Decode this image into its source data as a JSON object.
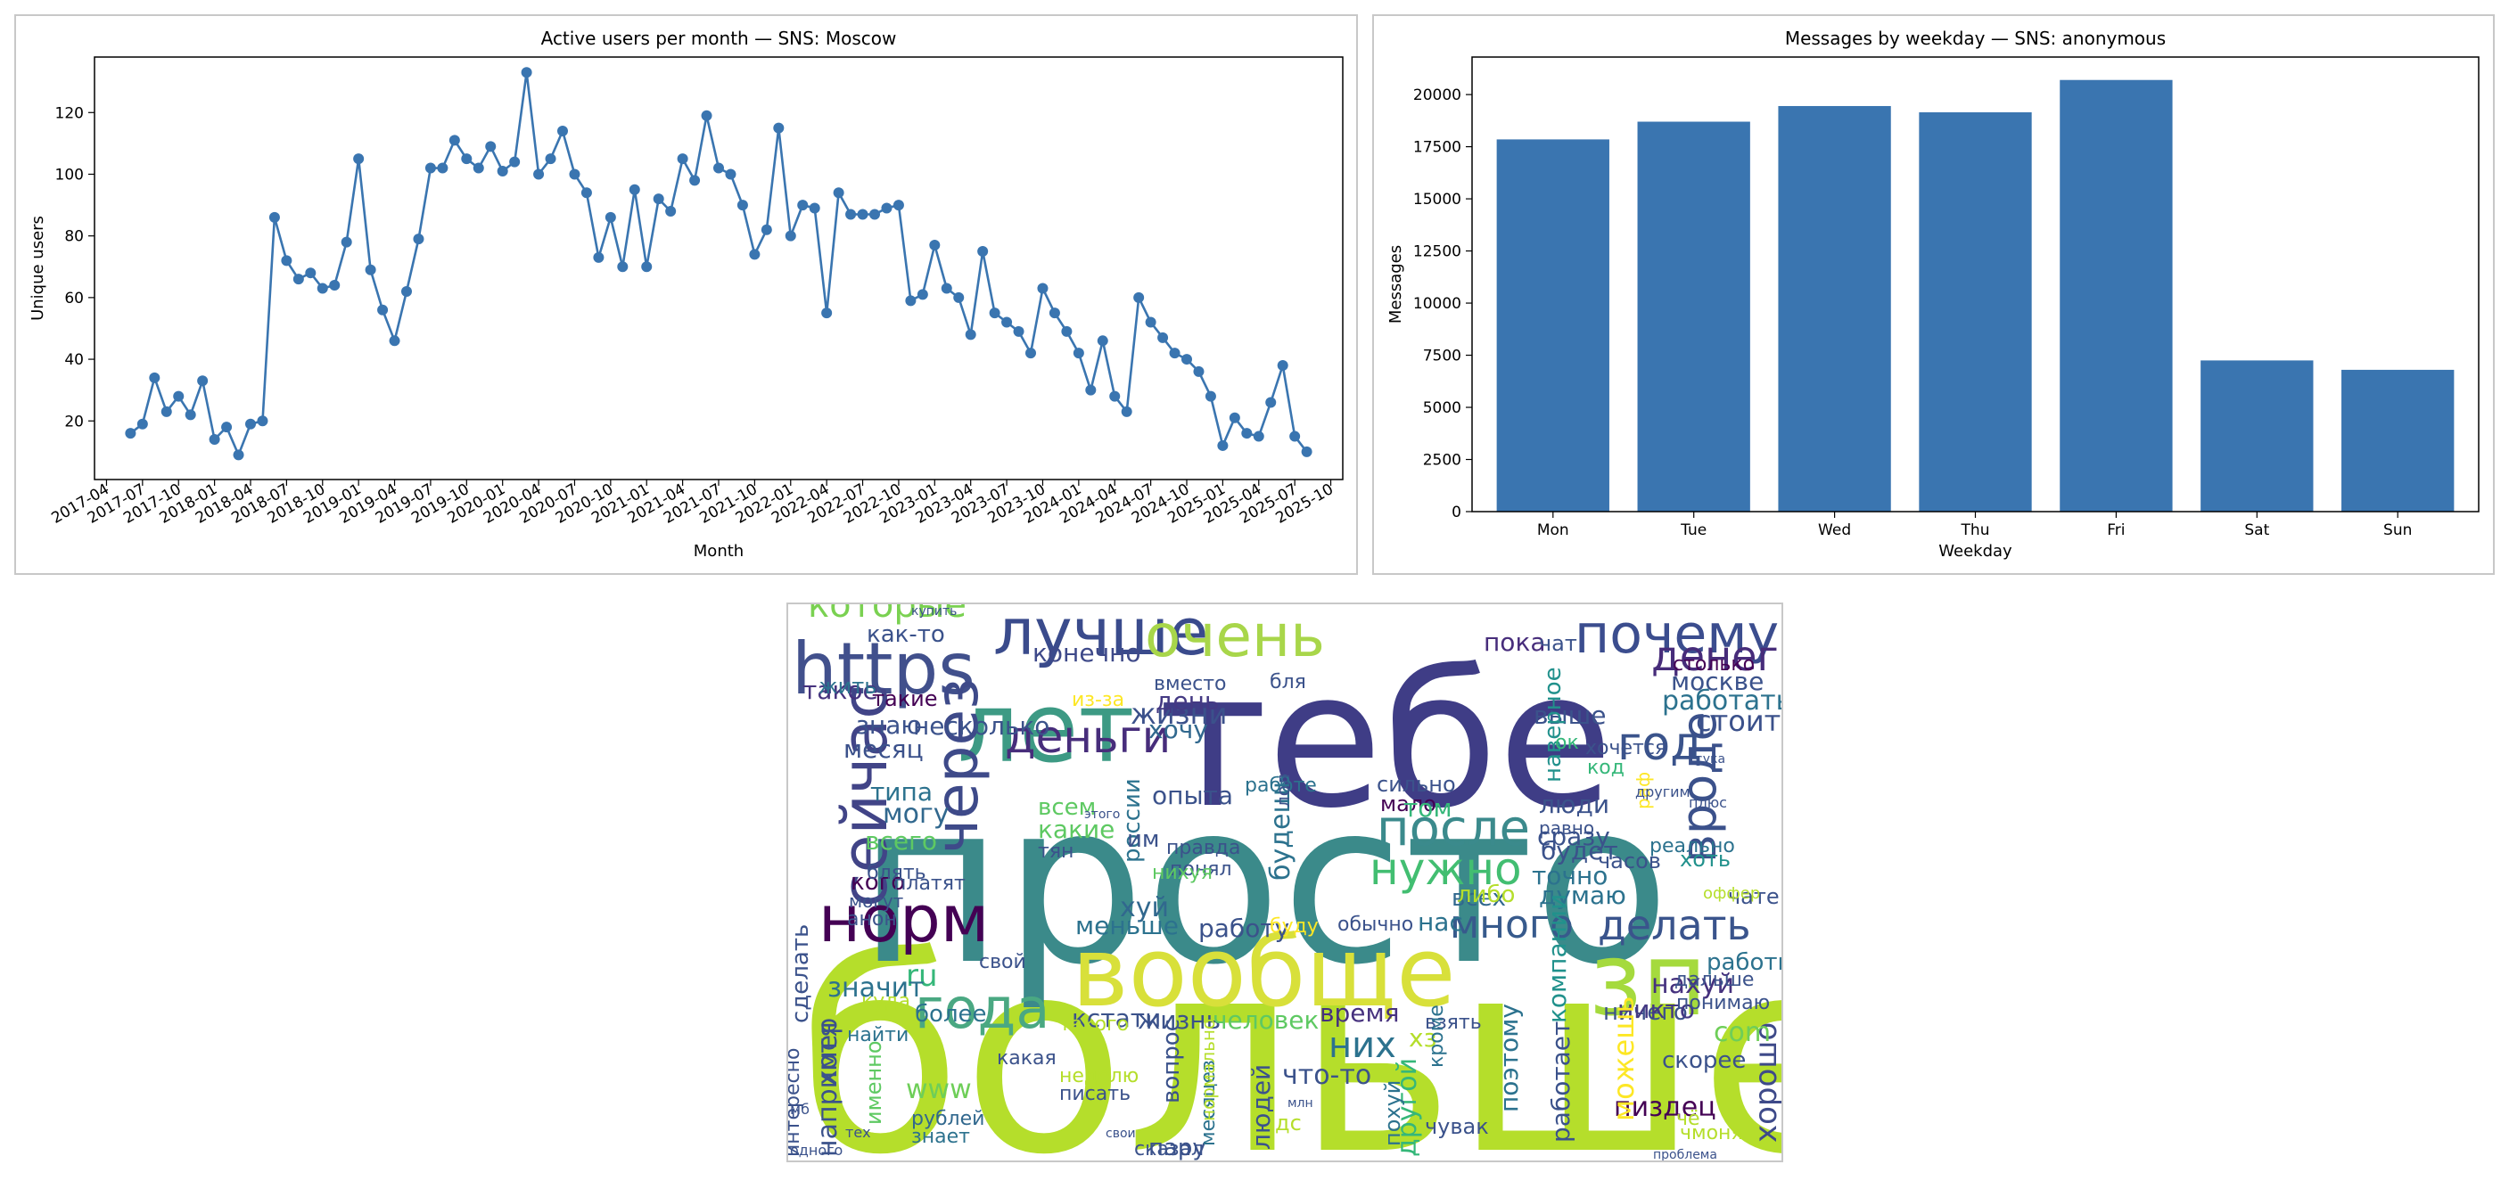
{
  "charts": [
    {
      "type": "line",
      "title": "Active users per month — SNS: Moscow",
      "xlabel": "Month",
      "ylabel": "Unique users",
      "color": "#3a75b0",
      "ylim": [
        1,
        138
      ],
      "yticks": [
        20,
        40,
        60,
        80,
        100,
        120
      ],
      "xtick_labels": [
        "2017-04",
        "2017-07",
        "2017-10",
        "2018-01",
        "2018-04",
        "2018-07",
        "2018-10",
        "2019-01",
        "2019-04",
        "2019-07",
        "2019-10",
        "2020-01",
        "2020-04",
        "2020-07",
        "2020-10",
        "2021-01",
        "2021-04",
        "2021-07",
        "2021-10",
        "2022-01",
        "2022-04",
        "2022-07",
        "2022-10",
        "2023-01",
        "2023-04",
        "2023-07",
        "2023-10",
        "2024-01",
        "2024-04",
        "2024-07",
        "2024-10",
        "2025-01",
        "2025-04",
        "2025-07",
        "2025-10"
      ],
      "x": [
        "2017-06",
        "2017-07",
        "2017-08",
        "2017-09",
        "2017-10",
        "2017-11",
        "2017-12",
        "2018-01",
        "2018-02",
        "2018-03",
        "2018-04",
        "2018-05",
        "2018-06",
        "2018-07",
        "2018-08",
        "2018-09",
        "2018-10",
        "2018-11",
        "2018-12",
        "2019-01",
        "2019-02",
        "2019-03",
        "2019-04",
        "2019-05",
        "2019-06",
        "2019-07",
        "2019-08",
        "2019-09",
        "2019-10",
        "2019-11",
        "2019-12",
        "2020-01",
        "2020-02",
        "2020-03",
        "2020-04",
        "2020-05",
        "2020-06",
        "2020-07",
        "2020-08",
        "2020-09",
        "2020-10",
        "2020-11",
        "2020-12",
        "2021-01",
        "2021-02",
        "2021-03",
        "2021-04",
        "2021-05",
        "2021-06",
        "2021-07",
        "2021-08",
        "2021-09",
        "2021-10",
        "2021-11",
        "2021-12",
        "2022-01",
        "2022-02",
        "2022-03",
        "2022-04",
        "2022-05",
        "2022-06",
        "2022-07",
        "2022-08",
        "2022-09",
        "2022-10",
        "2022-11",
        "2022-12",
        "2023-01",
        "2023-02",
        "2023-03",
        "2023-04",
        "2023-05",
        "2023-06",
        "2023-07",
        "2023-08",
        "2023-09",
        "2023-10",
        "2023-11",
        "2023-12",
        "2024-01",
        "2024-02",
        "2024-03",
        "2024-04",
        "2024-05",
        "2024-06",
        "2024-07",
        "2024-08",
        "2024-09",
        "2024-10",
        "2024-11",
        "2024-12",
        "2025-01",
        "2025-02",
        "2025-03",
        "2025-04",
        "2025-05",
        "2025-06",
        "2025-07",
        "2025-08"
      ],
      "y": [
        16,
        19,
        34,
        23,
        28,
        22,
        33,
        14,
        18,
        9,
        19,
        20,
        86,
        72,
        66,
        68,
        63,
        64,
        78,
        105,
        69,
        56,
        46,
        62,
        79,
        102,
        102,
        111,
        105,
        102,
        109,
        101,
        104,
        133,
        100,
        105,
        114,
        100,
        94,
        73,
        86,
        70,
        95,
        70,
        92,
        88,
        105,
        98,
        119,
        102,
        100,
        90,
        74,
        82,
        115,
        80,
        90,
        89,
        55,
        94,
        87,
        87,
        87,
        89,
        90,
        59,
        61,
        77,
        63,
        60,
        48,
        75,
        55,
        52,
        49,
        42,
        63,
        55,
        49,
        42,
        30,
        46,
        28,
        23,
        60,
        52,
        47,
        42,
        40,
        36,
        28,
        12,
        21,
        16,
        15,
        26,
        38,
        15,
        10
      ]
    },
    {
      "type": "bar",
      "title": "Messages by weekday — SNS: anonymous",
      "xlabel": "Weekday",
      "ylabel": "Messages",
      "color": "#3a75b0",
      "ylim": [
        0,
        21800
      ],
      "yticks": [
        0,
        2500,
        5000,
        7500,
        10000,
        12500,
        15000,
        17500,
        20000
      ],
      "categories": [
        "Mon",
        "Tue",
        "Wed",
        "Thu",
        "Fri",
        "Sat",
        "Sun"
      ],
      "values": [
        17850,
        18700,
        19450,
        19150,
        20700,
        7250,
        6800
      ]
    }
  ],
  "wordcloud": {
    "words": [
      {
        "text": "больше",
        "color": "#b5de2b"
      },
      {
        "text": "просто",
        "color": "#3b8a8a"
      },
      {
        "text": "тебе",
        "color": "#3f3d86"
      },
      {
        "text": "лет",
        "color": "#3d9a84"
      },
      {
        "text": "вообще",
        "color": "#d8e03a"
      },
      {
        "text": "лучше",
        "color": "#3a4b8c"
      },
      {
        "text": "очень",
        "color": "#a8d64a"
      },
      {
        "text": "почему",
        "color": "#3b4d8e"
      },
      {
        "text": "https",
        "color": "#41508c"
      },
      {
        "text": "зп",
        "color": "#a5da3d"
      },
      {
        "text": "норм",
        "color": "#440154"
      },
      {
        "text": "сейчас",
        "color": "#414487"
      },
      {
        "text": "через",
        "color": "#3e4a89"
      },
      {
        "text": "года",
        "color": "#4aa882"
      },
      {
        "text": "деньги",
        "color": "#472d7b"
      },
      {
        "text": "год",
        "color": "#3a538b"
      },
      {
        "text": "денег",
        "color": "#472c7a"
      },
      {
        "text": "делать",
        "color": "#3a548c"
      },
      {
        "text": "много",
        "color": "#375a8c"
      },
      {
        "text": "после",
        "color": "#3b8a8c"
      },
      {
        "text": "нужно",
        "color": "#42be71"
      },
      {
        "text": "которые",
        "color": "#7ad151"
      },
      {
        "text": "вроде",
        "color": "#3b518b"
      },
      {
        "text": "работать",
        "color": "#2c728e"
      },
      {
        "text": "стоит",
        "color": "#3b518b"
      },
      {
        "text": "пиздец",
        "color": "#440154"
      },
      {
        "text": "нахуй",
        "color": "#46327e"
      },
      {
        "text": "время",
        "color": "#46317e"
      },
      {
        "text": "ничего",
        "color": "#3b518b"
      },
      {
        "text": "жизни",
        "color": "#3b518b"
      },
      {
        "text": "конечно",
        "color": "#3e4989"
      },
      {
        "text": "меньше",
        "color": "#2c728e"
      },
      {
        "text": "работу",
        "color": "#3b528b"
      },
      {
        "text": "хорошо",
        "color": "#3e4a89"
      },
      {
        "text": "никто",
        "color": "#443983"
      },
      {
        "text": "ru",
        "color": "#35b779"
      },
      {
        "text": "com",
        "color": "#6ece58"
      },
      {
        "text": "www",
        "color": "#6ece58"
      },
      {
        "text": "хуй",
        "color": "#31688e"
      },
      {
        "text": "такое",
        "color": "#46327e"
      },
      {
        "text": "могу",
        "color": "#31688e"
      },
      {
        "text": "типа",
        "color": "#2c728e"
      },
      {
        "text": "всего",
        "color": "#5ec962"
      },
      {
        "text": "знаю",
        "color": "#3b528b"
      },
      {
        "text": "месяц",
        "color": "#3b518b"
      },
      {
        "text": "день",
        "color": "#443983"
      },
      {
        "text": "хочу",
        "color": "#31688e"
      },
      {
        "text": "пока",
        "color": "#472d7b"
      },
      {
        "text": "выше",
        "color": "#3b528b"
      },
      {
        "text": "люди",
        "color": "#3b528b"
      },
      {
        "text": "будет",
        "color": "#3b528b"
      },
      {
        "text": "точно",
        "color": "#2c728e"
      },
      {
        "text": "думаю",
        "color": "#2c728e"
      },
      {
        "text": "мало",
        "color": "#440154"
      },
      {
        "text": "всех",
        "color": "#31688e"
      },
      {
        "text": "кстати",
        "color": "#3b528b"
      },
      {
        "text": "жизнь",
        "color": "#3b528b"
      },
      {
        "text": "человек",
        "color": "#5ec962"
      },
      {
        "text": "них",
        "color": "#2c728e"
      },
      {
        "text": "что-то",
        "color": "#3b528b"
      },
      {
        "text": "можешь",
        "color": "#fde725"
      },
      {
        "text": "компании",
        "color": "#21918c"
      },
      {
        "text": "работает",
        "color": "#3b528b"
      },
      {
        "text": "поэтому",
        "color": "#2c728e"
      },
      {
        "text": "другой",
        "color": "#35b779"
      },
      {
        "text": "опыта",
        "color": "#3b528b"
      },
      {
        "text": "нас",
        "color": "#2c728e"
      },
      {
        "text": "либо",
        "color": "#b5de2b"
      },
      {
        "text": "сразу",
        "color": "#3b528b"
      },
      {
        "text": "часов",
        "color": "#3b528b"
      },
      {
        "text": "хоть",
        "color": "#21918c"
      },
      {
        "text": "реально",
        "color": "#2c728e"
      },
      {
        "text": "тоже",
        "color": "#a5db36"
      },
      {
        "text": "также",
        "color": "#a5db36"
      },
      {
        "text": "москве",
        "color": "#3b528b"
      },
      {
        "text": "наверное",
        "color": "#21918c"
      },
      {
        "text": "работы",
        "color": "#2c728e"
      },
      {
        "text": "дальше",
        "color": "#3b528b"
      },
      {
        "text": "понимаю",
        "color": "#3b528b"
      },
      {
        "text": "скорее",
        "color": "#3b528b"
      },
      {
        "text": "сделать",
        "color": "#3b528b"
      },
      {
        "text": "значит",
        "color": "#2c728e"
      },
      {
        "text": "найти",
        "color": "#2c728e"
      },
      {
        "text": "более",
        "color": "#2c728e"
      },
      {
        "text": "например",
        "color": "#3b528b"
      },
      {
        "text": "хотя",
        "color": "#3b528b"
      },
      {
        "text": "рублей",
        "color": "#31688e"
      },
      {
        "text": "знает",
        "color": "#2c728e"
      },
      {
        "text": "пару",
        "color": "#3b528b"
      },
      {
        "text": "людей",
        "color": "#3b528b"
      },
      {
        "text": "вопрос",
        "color": "#3b528b"
      },
      {
        "text": "месяцев",
        "color": "#2c728e"
      },
      {
        "text": "интересно",
        "color": "#3b528b"
      },
      {
        "text": "именно",
        "color": "#5ec962"
      },
      {
        "text": "россии",
        "color": "#2c728e"
      },
      {
        "text": "будешь",
        "color": "#2c728e"
      },
      {
        "text": "какие",
        "color": "#5ec962"
      },
      {
        "text": "всем",
        "color": "#5ec962"
      },
      {
        "text": "им",
        "color": "#3b528b"
      },
      {
        "text": "том",
        "color": "#35b779"
      },
      {
        "text": "сильно",
        "color": "#3b528b"
      },
      {
        "text": "кого",
        "color": "#440154"
      },
      {
        "text": "могут",
        "color": "#3b528b"
      },
      {
        "text": "анон",
        "color": "#3b528b"
      },
      {
        "text": "платят",
        "color": "#3b528b"
      },
      {
        "text": "несколько",
        "color": "#3b528b"
      },
      {
        "text": "жить",
        "color": "#2c728e"
      },
      {
        "text": "такие",
        "color": "#440154"
      },
      {
        "text": "как-то",
        "color": "#3b528b"
      },
      {
        "text": "купить",
        "color": "#3b528b"
      },
      {
        "text": "вместо",
        "color": "#3b528b"
      },
      {
        "text": "работе",
        "color": "#2c728e"
      },
      {
        "text": "понял",
        "color": "#3b528b"
      },
      {
        "text": "правда",
        "color": "#3b528b"
      },
      {
        "text": "равно",
        "color": "#3b528b"
      },
      {
        "text": "чат",
        "color": "#3b528b"
      },
      {
        "text": "столько",
        "color": "#440154"
      },
      {
        "text": "хочется",
        "color": "#3b528b"
      },
      {
        "text": "код",
        "color": "#35b779"
      },
      {
        "text": "ок",
        "color": "#35b779"
      },
      {
        "text": "чате",
        "color": "#3b528b"
      },
      {
        "text": "буду",
        "color": "#fde725"
      },
      {
        "text": "обычно",
        "color": "#3b528b"
      },
      {
        "text": "свой",
        "color": "#3b528b"
      },
      {
        "text": "взять",
        "color": "#3b528b"
      },
      {
        "text": "какая",
        "color": "#3b528b"
      },
      {
        "text": "чувак",
        "color": "#3b528b"
      },
      {
        "text": "блять",
        "color": "#3b528b"
      },
      {
        "text": "сказал",
        "color": "#3b528b"
      },
      {
        "text": "тян",
        "color": "#3b528b"
      },
      {
        "text": "нихуя",
        "color": "#5ec962"
      },
      {
        "text": "куда",
        "color": "#b5de2b"
      },
      {
        "text": "такого",
        "color": "#b5de2b"
      },
      {
        "text": "неделю",
        "color": "#b5de2b"
      },
      {
        "text": "писать",
        "color": "#3b528b"
      },
      {
        "text": "чё",
        "color": "#b5de2b"
      },
      {
        "text": "дс",
        "color": "#b5de2b"
      },
      {
        "text": "хз",
        "color": "#b5de2b"
      },
      {
        "text": "раф",
        "color": "#fde725"
      },
      {
        "text": "оффер",
        "color": "#b5de2b"
      },
      {
        "text": "чмоня",
        "color": "#b5de2b"
      },
      {
        "text": "мб",
        "color": "#3b528b"
      },
      {
        "text": "из-за",
        "color": "#fde725"
      },
      {
        "text": "тех",
        "color": "#3b528b"
      },
      {
        "text": "одного",
        "color": "#3b528b"
      },
      {
        "text": "нормально",
        "color": "#b5de2b"
      },
      {
        "text": "млн",
        "color": "#3b528b"
      },
      {
        "text": "похуй",
        "color": "#2c728e"
      },
      {
        "text": "кроме",
        "color": "#2c728e"
      },
      {
        "text": "бля",
        "color": "#3b528b"
      },
      {
        "text": "свои",
        "color": "#3b528b"
      },
      {
        "text": "лол",
        "color": "#3b528b"
      },
      {
        "text": "этого",
        "color": "#3b528b"
      },
      {
        "text": "другим",
        "color": "#3b528b"
      },
      {
        "text": "сука",
        "color": "#3b528b"
      },
      {
        "text": "плюс",
        "color": "#3b528b"
      },
      {
        "text": "проблема",
        "color": "#3b528b"
      }
    ]
  }
}
